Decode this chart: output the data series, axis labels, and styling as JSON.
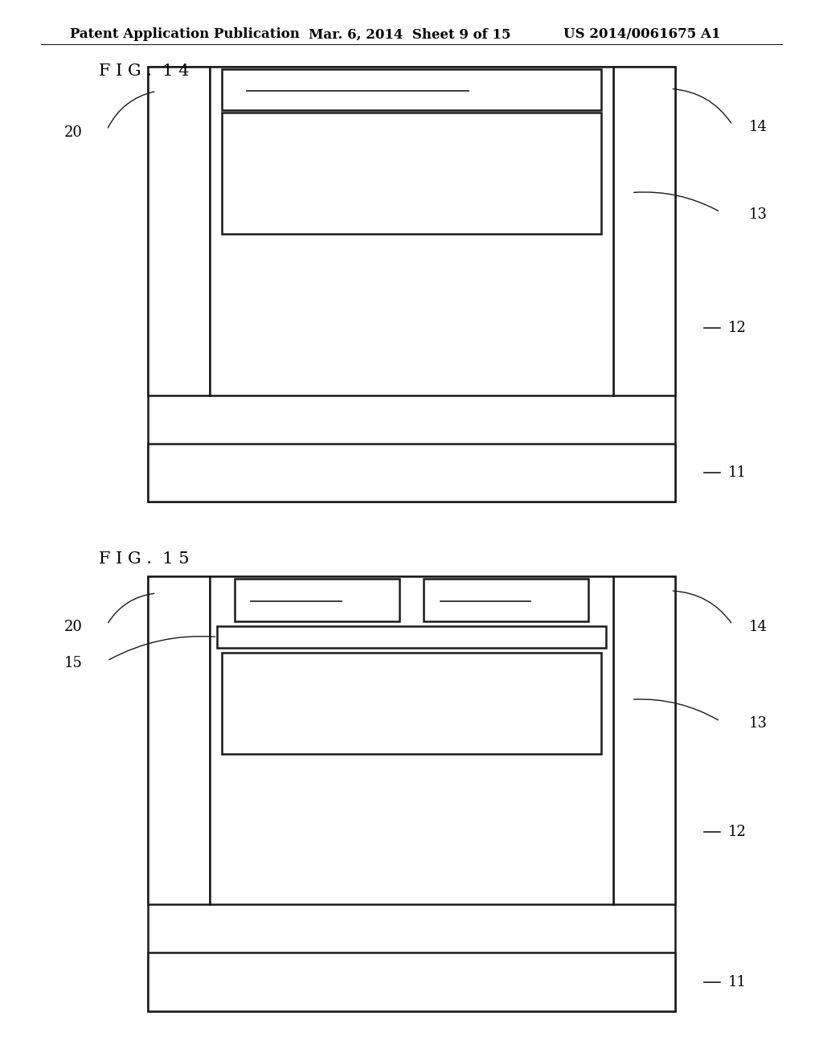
{
  "bg_color": "#ffffff",
  "line_color": "#1a1a1a",
  "header_text": "Patent Application Publication",
  "header_date": "Mar. 6, 2014  Sheet 9 of 15",
  "header_patent": "US 2014/0061675 A1",
  "fig14_label": "F I G .  1 4",
  "fig15_label": "F I G .  1 5",
  "label_fontsize": 15,
  "header_fontsize": 12,
  "ref_fontsize": 13
}
